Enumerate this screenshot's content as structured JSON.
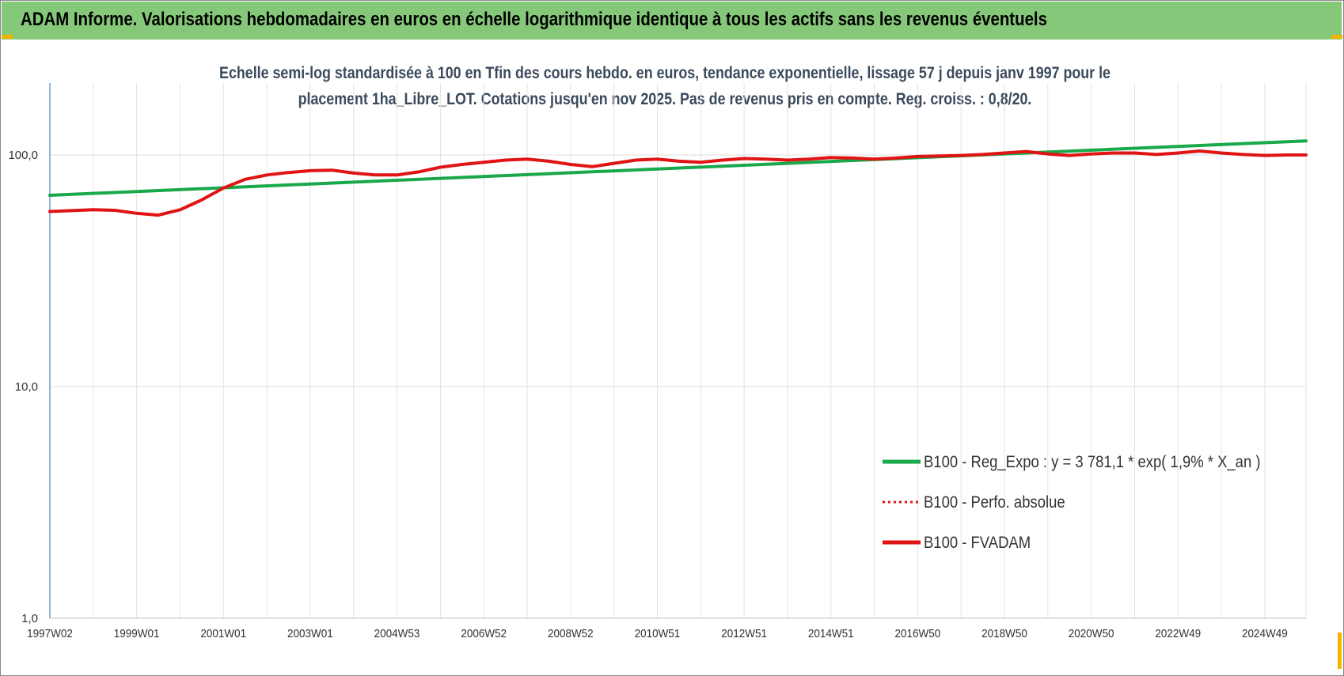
{
  "header": {
    "title": "ADAM Informe. Valorisations hebdomadaires en euros en échelle logarithmique identique à tous les actifs sans les revenus éventuels"
  },
  "chart_data": {
    "type": "line",
    "title_lines": [
      "Echelle semi-log standardisée à 100 en Tfin des cours hebdo. en euros, tendance exponentielle, lissage 57 j depuis janv 1997 pour le",
      "placement 1ha_Libre_LOT. Cotations jusqu'en nov 2025. Pas de revenus pris en compte. Reg. croiss. : 0,8/20."
    ],
    "y_scale": "log",
    "ylim": [
      1,
      200
    ],
    "y_ticks": [
      {
        "value": 1,
        "label": "1,0"
      },
      {
        "value": 10,
        "label": "10,0"
      },
      {
        "value": 100,
        "label": "100,0"
      }
    ],
    "x_range": [
      1997.0,
      2025.95
    ],
    "x_ticks": [
      {
        "x": 1997.0,
        "label": "1997W02"
      },
      {
        "x": 1999.0,
        "label": "1999W01"
      },
      {
        "x": 2001.0,
        "label": "2001W01"
      },
      {
        "x": 2003.0,
        "label": "2003W01"
      },
      {
        "x": 2005.0,
        "label": "2004W53"
      },
      {
        "x": 2007.0,
        "label": "2006W52"
      },
      {
        "x": 2009.0,
        "label": "2008W52"
      },
      {
        "x": 2011.0,
        "label": "2010W51"
      },
      {
        "x": 2013.0,
        "label": "2012W51"
      },
      {
        "x": 2015.0,
        "label": "2014W51"
      },
      {
        "x": 2017.0,
        "label": "2016W50"
      },
      {
        "x": 2019.0,
        "label": "2018W50"
      },
      {
        "x": 2021.0,
        "label": "2020W50"
      },
      {
        "x": 2023.0,
        "label": "2022W49"
      },
      {
        "x": 2025.0,
        "label": "2024W49"
      }
    ],
    "grid": true,
    "legend_position": "bottom-right",
    "series": [
      {
        "name": "B100 - Reg_Expo : y = 3 781,1 * exp( 1,9% *  X_an )",
        "color": "#19a84a",
        "style": "solid",
        "x": [
          1997.0,
          2025.95
        ],
        "y": [
          67,
          115
        ]
      },
      {
        "name": "B100 - Perfo. absolue",
        "color": "#e01414",
        "style": "dotted",
        "x": [],
        "y": []
      },
      {
        "name": "B100 - FVADAM",
        "color": "#e01414",
        "style": "solid",
        "x": [
          1997.0,
          1997.5,
          1998.0,
          1998.5,
          1999.0,
          1999.5,
          2000.0,
          2000.5,
          2001.0,
          2001.5,
          2002.0,
          2002.5,
          2003.0,
          2003.5,
          2004.0,
          2004.5,
          2005.0,
          2005.5,
          2006.0,
          2006.5,
          2007.0,
          2007.5,
          2008.0,
          2008.5,
          2009.0,
          2009.5,
          2010.0,
          2010.5,
          2011.0,
          2011.5,
          2012.0,
          2012.5,
          2013.0,
          2013.5,
          2014.0,
          2014.5,
          2015.0,
          2015.5,
          2016.0,
          2016.5,
          2017.0,
          2017.5,
          2018.0,
          2018.5,
          2019.0,
          2019.5,
          2020.0,
          2020.5,
          2021.0,
          2021.5,
          2022.0,
          2022.5,
          2023.0,
          2023.5,
          2024.0,
          2024.5,
          2025.0,
          2025.5,
          2025.95
        ],
        "y": [
          57,
          57.5,
          58,
          57.7,
          56,
          55,
          58,
          64,
          72,
          78.5,
          82,
          84,
          85.5,
          86,
          83.5,
          82,
          82,
          84.5,
          88.5,
          91,
          93,
          95,
          96,
          94,
          91,
          89,
          92,
          95,
          96,
          94,
          93,
          95,
          96.5,
          96,
          95,
          96,
          97.5,
          97,
          96,
          97,
          98.5,
          99,
          99.5,
          100.5,
          102,
          103.5,
          101,
          99.5,
          101,
          102,
          102,
          100.5,
          102,
          104,
          102,
          100.5,
          99.5,
          100,
          100
        ]
      }
    ]
  }
}
